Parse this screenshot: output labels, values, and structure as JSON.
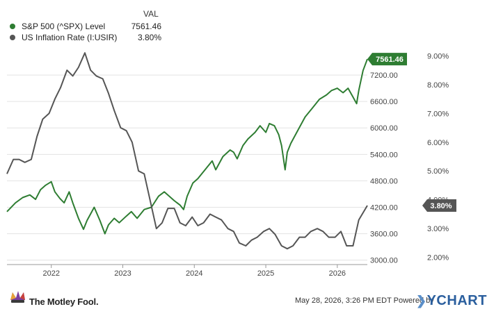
{
  "legend": {
    "value_header": "VAL",
    "items": [
      {
        "name": "S&P 500 (^SPX) Level",
        "value": "7561.46",
        "color": "#2e7d32"
      },
      {
        "name": "US Inflation Rate (I:USIR)",
        "value": "3.80%",
        "color": "#555555"
      }
    ]
  },
  "footer": {
    "brand": "The Motley Fool.",
    "date_text": "May 28, 2026, 3:26 PM EDT  Powered by",
    "ycharts": "YCHARTS"
  },
  "chart_data": {
    "type": "line",
    "x_ticks": [
      "2022",
      "2023",
      "2024",
      "2025",
      "2026"
    ],
    "x_range": [
      2021.38,
      2026.42
    ],
    "y_left": {
      "ticks": [
        "3000.00",
        "3600.00",
        "4200.00",
        "4800.00",
        "5400.00",
        "6000.00",
        "6600.00",
        "7200.00"
      ],
      "ylim": [
        2900,
        7800
      ]
    },
    "y_right": {
      "ticks": [
        "2.00%",
        "3.00%",
        "4.00%",
        "5.00%",
        "6.00%",
        "7.00%",
        "8.00%",
        "9.00%"
      ],
      "ylim": [
        1.75,
        9.25
      ]
    },
    "grid": "horizontal",
    "end_labels": {
      "spx": "7561.46",
      "usir": "3.80%"
    },
    "series": [
      {
        "name": "S&P 500 (^SPX) Level",
        "axis": "left",
        "color": "#2e7d32",
        "points": [
          [
            2021.38,
            4100
          ],
          [
            2021.5,
            4300
          ],
          [
            2021.6,
            4420
          ],
          [
            2021.7,
            4480
          ],
          [
            2021.78,
            4380
          ],
          [
            2021.85,
            4600
          ],
          [
            2021.92,
            4700
          ],
          [
            2022.0,
            4780
          ],
          [
            2022.05,
            4550
          ],
          [
            2022.12,
            4400
          ],
          [
            2022.18,
            4300
          ],
          [
            2022.25,
            4550
          ],
          [
            2022.3,
            4300
          ],
          [
            2022.38,
            3950
          ],
          [
            2022.45,
            3700
          ],
          [
            2022.5,
            3900
          ],
          [
            2022.6,
            4200
          ],
          [
            2022.68,
            3900
          ],
          [
            2022.75,
            3600
          ],
          [
            2022.8,
            3800
          ],
          [
            2022.88,
            3950
          ],
          [
            2022.95,
            3850
          ],
          [
            2023.05,
            4000
          ],
          [
            2023.12,
            4100
          ],
          [
            2023.2,
            3950
          ],
          [
            2023.3,
            4150
          ],
          [
            2023.4,
            4200
          ],
          [
            2023.5,
            4450
          ],
          [
            2023.58,
            4550
          ],
          [
            2023.65,
            4450
          ],
          [
            2023.72,
            4350
          ],
          [
            2023.8,
            4250
          ],
          [
            2023.85,
            4150
          ],
          [
            2023.9,
            4450
          ],
          [
            2023.98,
            4750
          ],
          [
            2024.05,
            4850
          ],
          [
            2024.15,
            5050
          ],
          [
            2024.25,
            5250
          ],
          [
            2024.3,
            5050
          ],
          [
            2024.4,
            5350
          ],
          [
            2024.5,
            5500
          ],
          [
            2024.55,
            5450
          ],
          [
            2024.6,
            5300
          ],
          [
            2024.68,
            5600
          ],
          [
            2024.75,
            5750
          ],
          [
            2024.85,
            5900
          ],
          [
            2024.92,
            6050
          ],
          [
            2025.0,
            5900
          ],
          [
            2025.05,
            6100
          ],
          [
            2025.12,
            6050
          ],
          [
            2025.18,
            5850
          ],
          [
            2025.22,
            5600
          ],
          [
            2025.27,
            5050
          ],
          [
            2025.3,
            5450
          ],
          [
            2025.35,
            5650
          ],
          [
            2025.45,
            5950
          ],
          [
            2025.55,
            6250
          ],
          [
            2025.65,
            6450
          ],
          [
            2025.75,
            6650
          ],
          [
            2025.85,
            6750
          ],
          [
            2025.92,
            6850
          ],
          [
            2026.0,
            6900
          ],
          [
            2026.08,
            6800
          ],
          [
            2026.15,
            6900
          ],
          [
            2026.22,
            6700
          ],
          [
            2026.27,
            6550
          ],
          [
            2026.3,
            6850
          ],
          [
            2026.36,
            7300
          ],
          [
            2026.42,
            7561.46
          ]
        ]
      },
      {
        "name": "US Inflation Rate (I:USIR)",
        "axis": "right",
        "color": "#555555",
        "points": [
          [
            2021.38,
            4.9
          ],
          [
            2021.47,
            5.4
          ],
          [
            2021.55,
            5.4
          ],
          [
            2021.63,
            5.3
          ],
          [
            2021.72,
            5.4
          ],
          [
            2021.8,
            6.2
          ],
          [
            2021.88,
            6.8
          ],
          [
            2021.97,
            7.0
          ],
          [
            2022.05,
            7.5
          ],
          [
            2022.13,
            7.9
          ],
          [
            2022.22,
            8.5
          ],
          [
            2022.3,
            8.3
          ],
          [
            2022.38,
            8.6
          ],
          [
            2022.47,
            9.1
          ],
          [
            2022.55,
            8.5
          ],
          [
            2022.63,
            8.3
          ],
          [
            2022.72,
            8.2
          ],
          [
            2022.8,
            7.7
          ],
          [
            2022.88,
            7.1
          ],
          [
            2022.97,
            6.5
          ],
          [
            2023.05,
            6.4
          ],
          [
            2023.13,
            6.0
          ],
          [
            2023.22,
            5.0
          ],
          [
            2023.3,
            4.9
          ],
          [
            2023.38,
            4.0
          ],
          [
            2023.47,
            3.0
          ],
          [
            2023.55,
            3.2
          ],
          [
            2023.63,
            3.7
          ],
          [
            2023.72,
            3.7
          ],
          [
            2023.8,
            3.2
          ],
          [
            2023.88,
            3.1
          ],
          [
            2023.97,
            3.4
          ],
          [
            2024.05,
            3.1
          ],
          [
            2024.13,
            3.2
          ],
          [
            2024.22,
            3.5
          ],
          [
            2024.3,
            3.4
          ],
          [
            2024.38,
            3.3
          ],
          [
            2024.47,
            3.0
          ],
          [
            2024.55,
            2.9
          ],
          [
            2024.63,
            2.5
          ],
          [
            2024.72,
            2.4
          ],
          [
            2024.8,
            2.6
          ],
          [
            2024.88,
            2.7
          ],
          [
            2024.97,
            2.9
          ],
          [
            2025.05,
            3.0
          ],
          [
            2025.13,
            2.8
          ],
          [
            2025.22,
            2.4
          ],
          [
            2025.3,
            2.3
          ],
          [
            2025.38,
            2.4
          ],
          [
            2025.47,
            2.7
          ],
          [
            2025.55,
            2.7
          ],
          [
            2025.63,
            2.9
          ],
          [
            2025.72,
            3.0
          ],
          [
            2025.8,
            2.9
          ],
          [
            2025.88,
            2.7
          ],
          [
            2025.97,
            2.7
          ],
          [
            2026.05,
            2.9
          ],
          [
            2026.13,
            2.4
          ],
          [
            2026.22,
            2.4
          ],
          [
            2026.3,
            3.3
          ],
          [
            2026.42,
            3.8
          ]
        ]
      }
    ]
  }
}
